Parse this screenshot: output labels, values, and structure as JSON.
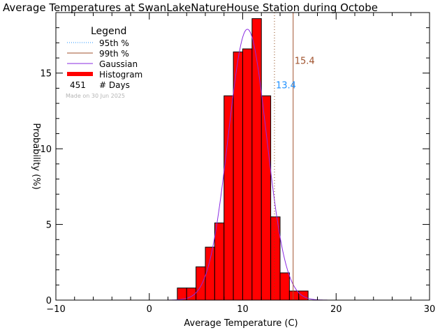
{
  "chart_data": {
    "type": "bar",
    "title": "Average Temperatures at SwanLakeNatureHouse Station during Octobe",
    "xlabel": "Average Temperature (C)",
    "ylabel": "Probability  (%)",
    "xlim": [
      -10,
      30
    ],
    "ylim": [
      0,
      19
    ],
    "xticks": [
      -10,
      0,
      10,
      20,
      30
    ],
    "xtick_labels": [
      "−10",
      "0",
      "10",
      "20",
      "30"
    ],
    "yticks": [
      0,
      5,
      10,
      15
    ],
    "ytick_labels": [
      "0",
      "5",
      "10",
      "15"
    ],
    "bin_width": 1,
    "histogram": {
      "name": "Histogram",
      "color": "#ff0000",
      "bins": [
        {
          "x0": 3,
          "value": 0.8
        },
        {
          "x0": 4,
          "value": 0.8
        },
        {
          "x0": 5,
          "value": 2.2
        },
        {
          "x0": 6,
          "value": 3.5
        },
        {
          "x0": 7,
          "value": 5.1
        },
        {
          "x0": 8,
          "value": 13.5
        },
        {
          "x0": 9,
          "value": 16.4
        },
        {
          "x0": 10,
          "value": 16.6
        },
        {
          "x0": 11,
          "value": 18.6
        },
        {
          "x0": 12,
          "value": 13.5
        },
        {
          "x0": 13,
          "value": 5.5
        },
        {
          "x0": 14,
          "value": 1.8
        },
        {
          "x0": 15,
          "value": 0.6
        },
        {
          "x0": 16,
          "value": 0.6
        }
      ]
    },
    "gaussian": {
      "name": "Gaussian",
      "color": "#8a2be2",
      "mean": 10.5,
      "sigma": 2.05,
      "peak": 17.9
    },
    "percentiles": [
      {
        "name": "95th %",
        "value": 13.4,
        "label": "13.4",
        "color": "#1e90ff",
        "line_color": "#8b4513",
        "style": "dotted"
      },
      {
        "name": "99th %",
        "value": 15.4,
        "label": "15.4",
        "color": "#a0522d",
        "line_color": "#a0522d",
        "style": "solid"
      }
    ],
    "legend": {
      "title": "Legend",
      "placement": "top-left",
      "entries": [
        {
          "label": "95th %",
          "color": "#1e90ff",
          "style": "dotted"
        },
        {
          "label": "99th %",
          "color": "#a0522d",
          "style": "solid"
        },
        {
          "label": "Gaussian",
          "color": "#8a2be2",
          "style": "solid"
        },
        {
          "label": "Histogram",
          "color": "#ff0000",
          "style": "thick"
        }
      ],
      "count_value": "451",
      "count_label": "# Days"
    },
    "annotation": "Made on 30 Jun 2025"
  }
}
